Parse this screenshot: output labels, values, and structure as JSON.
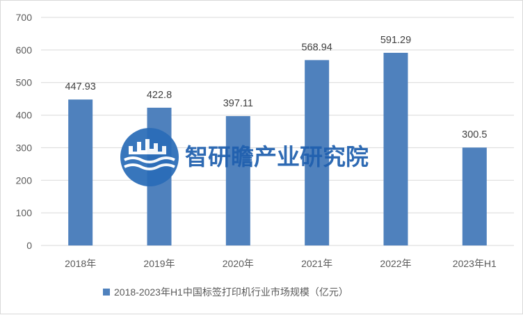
{
  "chart_data": {
    "type": "bar",
    "categories": [
      "2018年",
      "2019年",
      "2020年",
      "2021年",
      "2022年",
      "2023年H1"
    ],
    "series": [
      {
        "name": "2018-2023年H1中国标签打印机行业市场规模（亿元）",
        "values": [
          447.93,
          422.8,
          397.11,
          568.94,
          591.29,
          300.5
        ],
        "data_labels": [
          "447.93",
          "422.8",
          "397.11",
          "568.94",
          "591.29",
          "300.5"
        ]
      }
    ],
    "ylim": [
      0,
      700
    ],
    "yticks": [
      0,
      100,
      200,
      300,
      400,
      500,
      600,
      700
    ],
    "grid": true,
    "legend": "bottom",
    "bar_color": "#4f81bd",
    "grid_color": "#d9d9d9"
  },
  "watermark": {
    "text": "智研瞻产业研究院",
    "logo": "zhiyanzhan-logo",
    "color": "#1f5fae"
  }
}
